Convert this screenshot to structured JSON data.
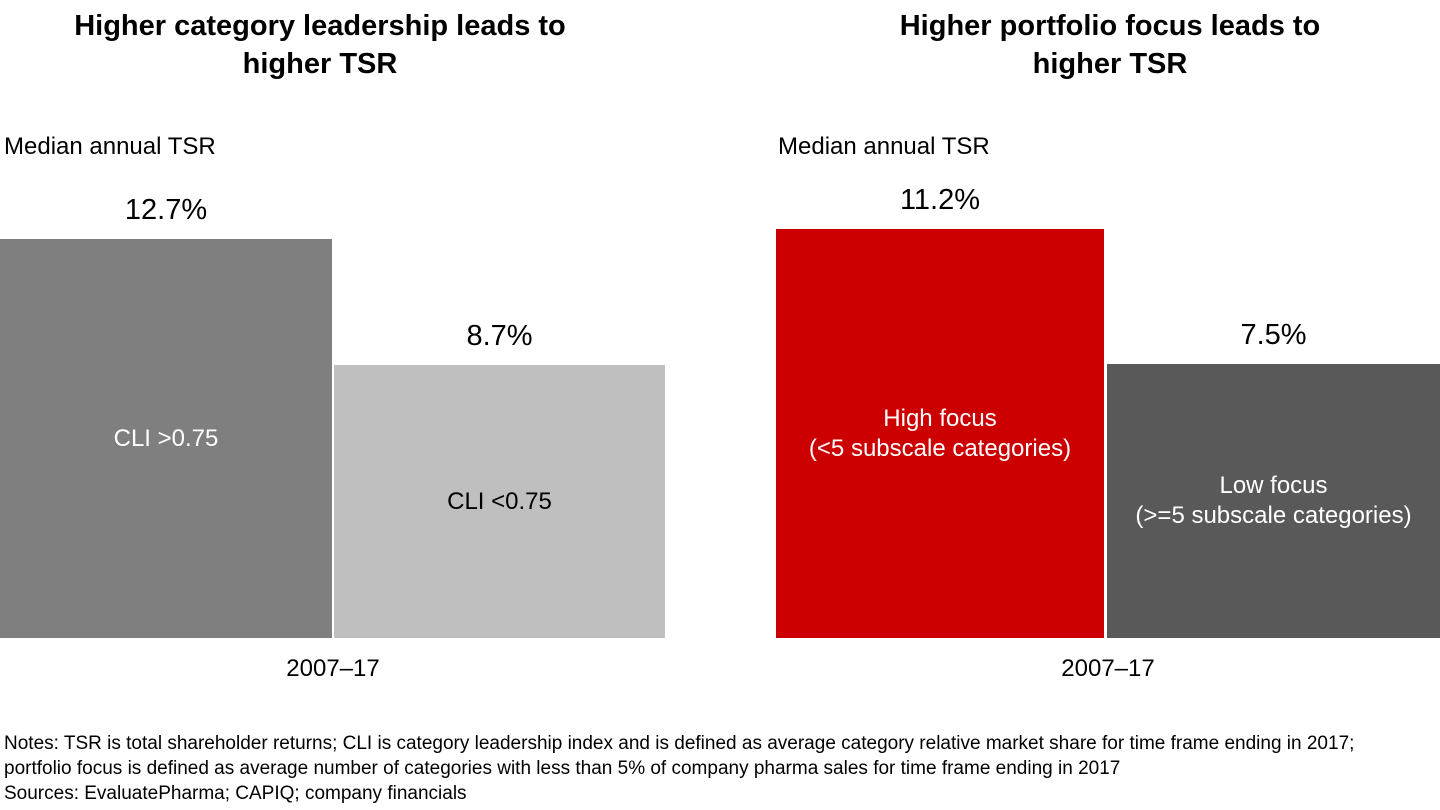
{
  "chart_data": [
    {
      "type": "bar",
      "title": "Higher category leadership leads to higher TSR",
      "title_line1": "Higher category leadership leads to",
      "title_line2": "higher TSR",
      "ylabel": "Median annual TSR",
      "xlabel": "2007–17",
      "categories": [
        "CLI >0.75",
        "CLI <0.75"
      ],
      "values": [
        12.7,
        8.7
      ],
      "value_labels": [
        "12.7%",
        "8.7%"
      ],
      "ylim": [
        0,
        14
      ],
      "grid": false,
      "legend": false,
      "bars": [
        {
          "category": "CLI >0.75",
          "value": 12.7,
          "value_label": "12.7%",
          "inner_label_line1": "CLI >0.75",
          "inner_label_line2": "",
          "color": "#7f7f7f",
          "text_color": "#ffffff"
        },
        {
          "category": "CLI <0.75",
          "value": 8.7,
          "value_label": "8.7%",
          "inner_label_line1": "CLI <0.75",
          "inner_label_line2": "",
          "color": "#bfbfbf",
          "text_color": "#000000"
        }
      ]
    },
    {
      "type": "bar",
      "title": "Higher portfolio focus leads to higher TSR",
      "title_line1": "Higher portfolio focus leads to",
      "title_line2": "higher TSR",
      "ylabel": "Median annual TSR",
      "xlabel": "2007–17",
      "categories": [
        "High focus (<5 subscale categories)",
        "Low focus (>=5 subscale categories)"
      ],
      "values": [
        11.2,
        7.5
      ],
      "value_labels": [
        "11.2%",
        "7.5%"
      ],
      "ylim": [
        0,
        12
      ],
      "grid": false,
      "legend": false,
      "bars": [
        {
          "category": "High focus (<5 subscale categories)",
          "value": 11.2,
          "value_label": "11.2%",
          "inner_label_line1": "High focus",
          "inner_label_line2": "(<5 subscale categories)",
          "color": "#cc0000",
          "text_color": "#ffffff"
        },
        {
          "category": "Low focus (>=5 subscale categories)",
          "value": 7.5,
          "value_label": "7.5%",
          "inner_label_line1": "Low focus",
          "inner_label_line2": "(>=5 subscale categories)",
          "color": "#595959",
          "text_color": "#ffffff"
        }
      ]
    }
  ],
  "notes": {
    "line1": "Notes: TSR is total shareholder returns; CLI is category leadership index and is defined as average category relative market share for time frame ending in 2017;",
    "line2": "portfolio focus is defined as average number of categories with less than 5% of company pharma sales for time frame ending in 2017",
    "sources": "Sources: EvaluatePharma; CAPIQ; company financials"
  }
}
